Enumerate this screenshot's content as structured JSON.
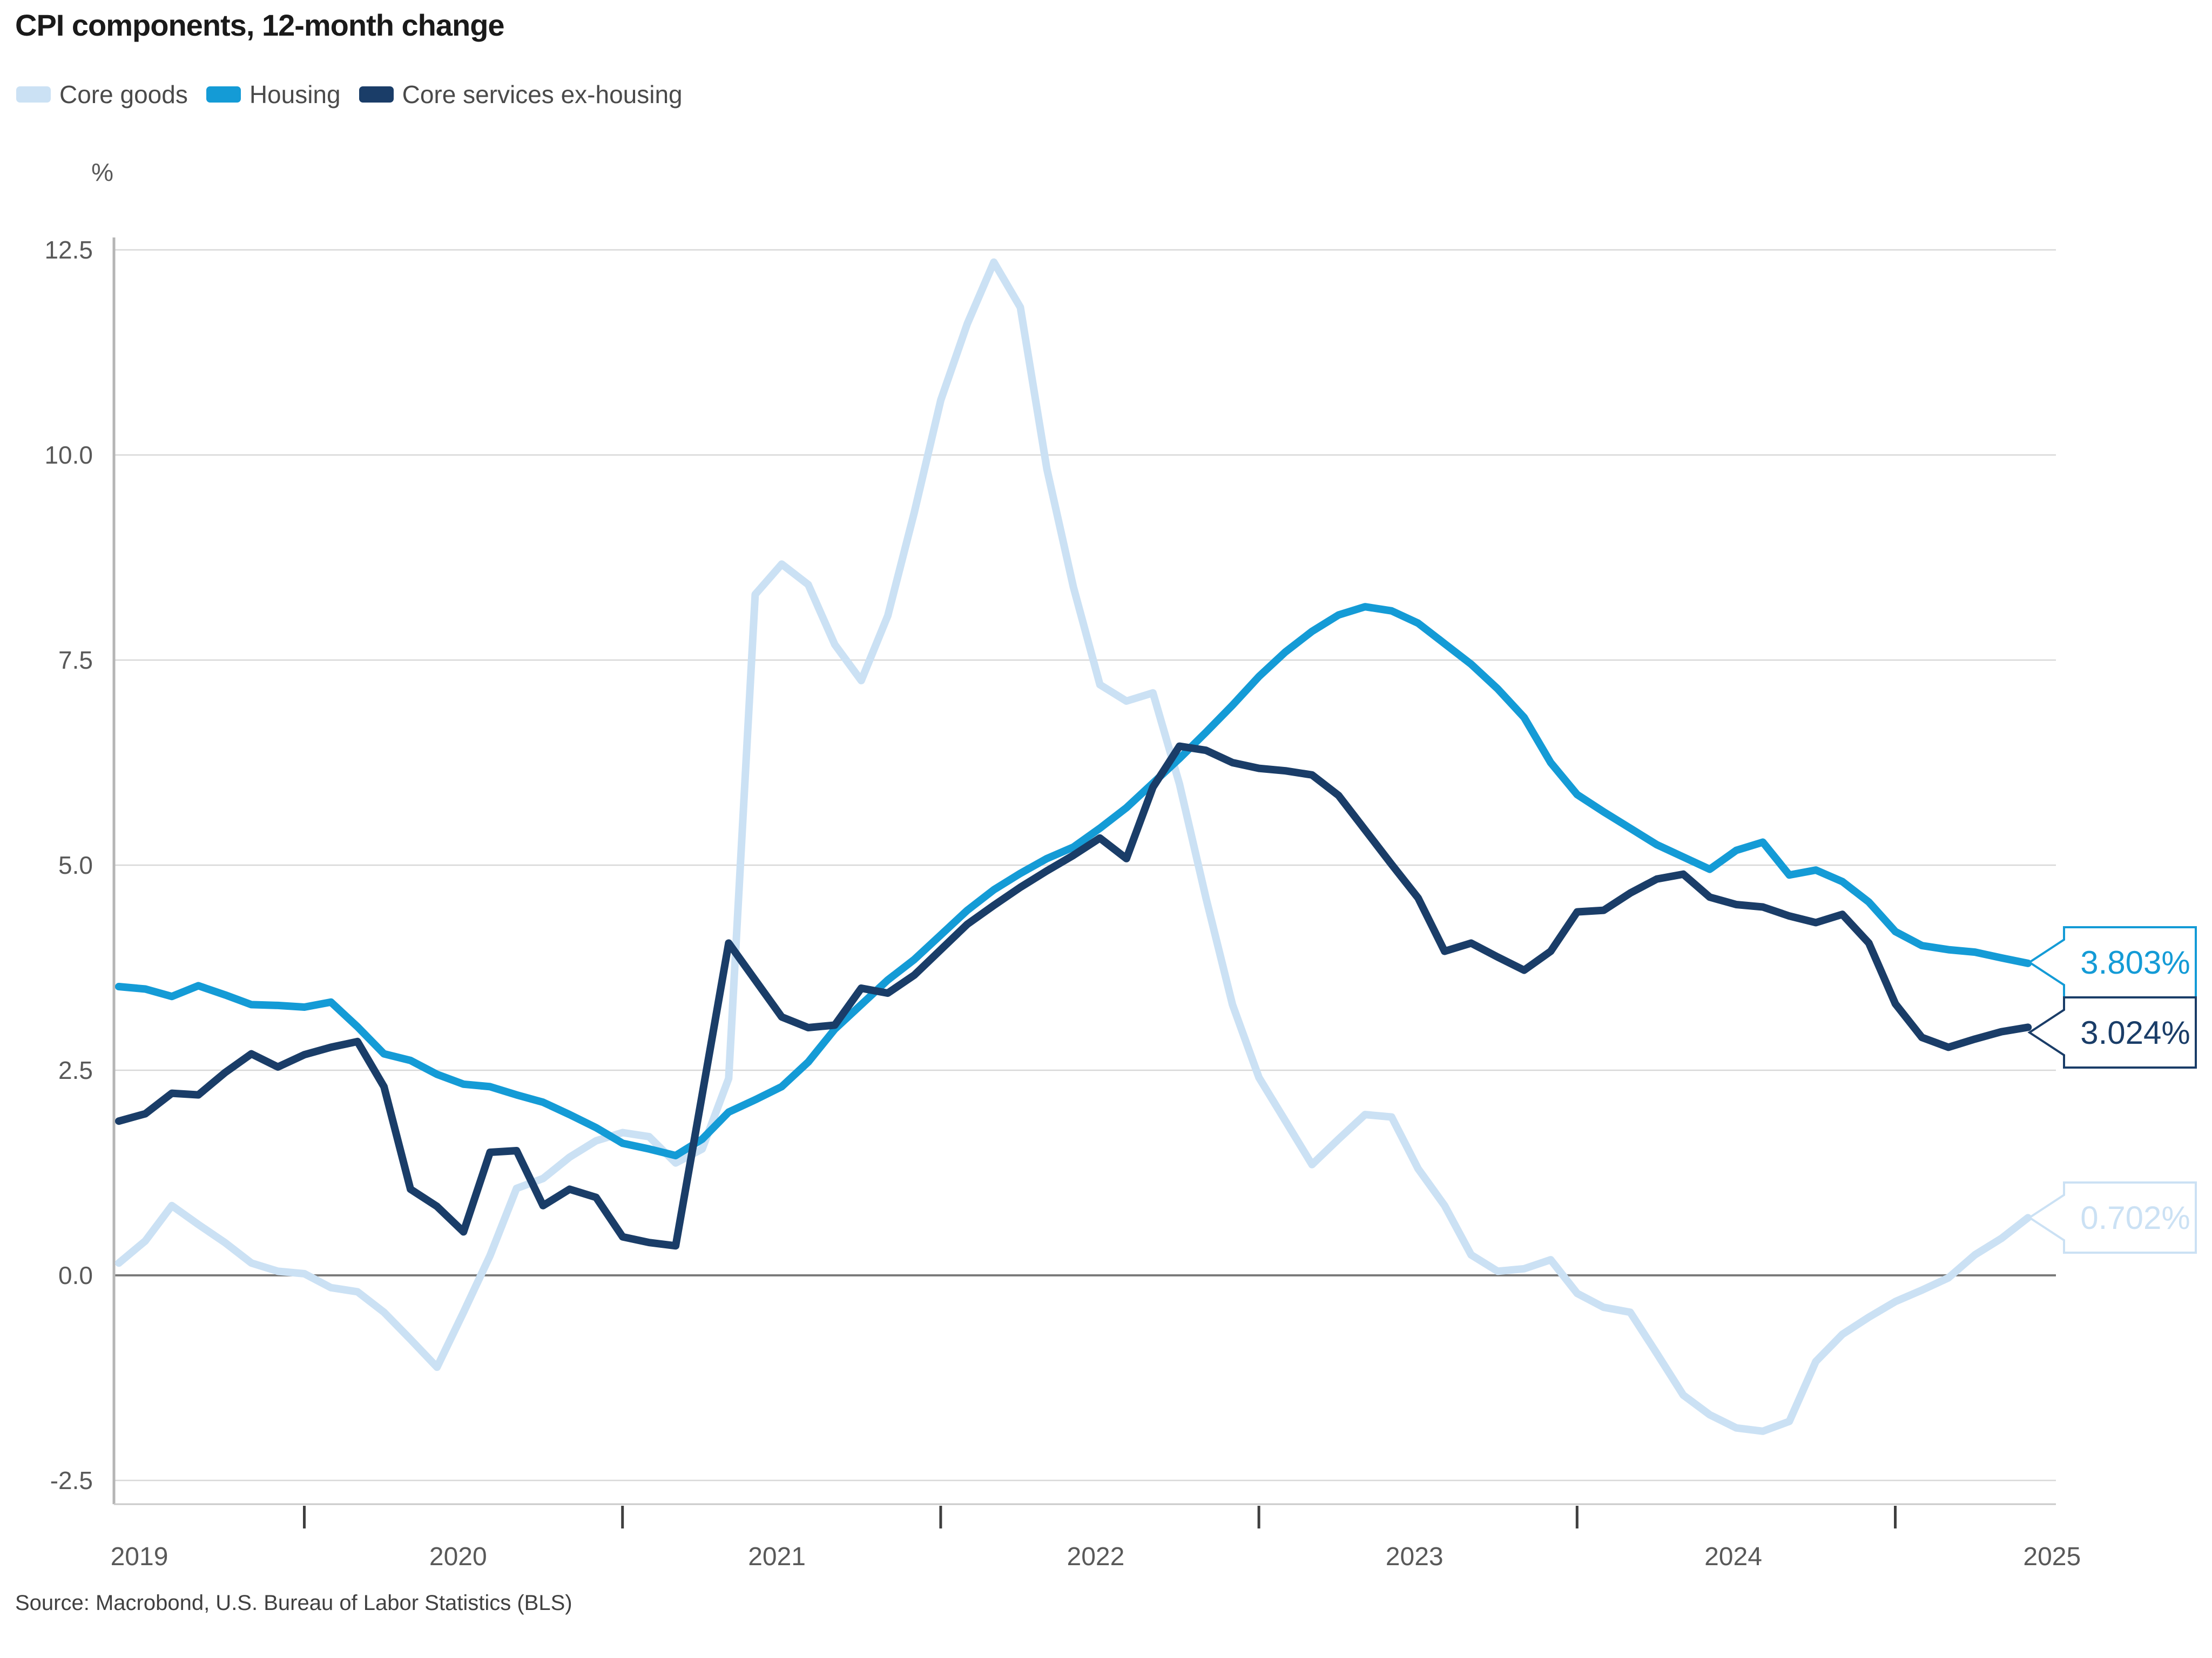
{
  "title": "CPI components, 12-month change",
  "source": "Source: Macrobond, U.S. Bureau of Labor Statistics (BLS)",
  "unit_label": "%",
  "legend": [
    {
      "key": "core_goods",
      "label": "Core goods"
    },
    {
      "key": "housing",
      "label": "Housing"
    },
    {
      "key": "core_services_ex_housing",
      "label": "Core services ex-housing"
    }
  ],
  "colors": {
    "core_goods": "#cbe1f4",
    "housing": "#149bd6",
    "core_services_ex_housing": "#1a3d68",
    "title": "#1a1a1a",
    "axis_text": "#595959",
    "gridline": "#d8d8d8",
    "zero_line": "#7a7a7a",
    "axis_line": "#b5b5b5",
    "tick": "#3f3f3f",
    "bottom_line": "#c9c9c9",
    "background": "#ffffff"
  },
  "end_labels": [
    {
      "series": "housing",
      "text": "3.803%",
      "value": 3.803
    },
    {
      "series": "core_services_ex_housing",
      "text": "3.024%",
      "value": 3.024
    },
    {
      "series": "core_goods",
      "text": "0.702%",
      "value": 0.702
    }
  ],
  "chart_data": {
    "type": "line",
    "unit": "%",
    "frequency": "monthly",
    "start_month": "2019-06",
    "end_month": "2025-06",
    "ylim": [
      -2.5,
      12.5
    ],
    "y_ticks": [
      12.5,
      10.0,
      7.5,
      5.0,
      2.5,
      0.0,
      -2.5
    ],
    "x_year_labels": [
      "2019",
      "2020",
      "2021",
      "2022",
      "2023",
      "2024",
      "2025"
    ],
    "grid": "horizontal",
    "legend_position": "top-left",
    "series": [
      {
        "name": "Core goods",
        "key": "core_goods",
        "values": [
          0.15,
          0.42,
          0.85,
          0.62,
          0.4,
          0.15,
          0.05,
          0.02,
          -0.15,
          -0.2,
          -0.45,
          -0.78,
          -1.12,
          -0.45,
          0.24,
          1.06,
          1.18,
          1.44,
          1.64,
          1.74,
          1.69,
          1.37,
          1.54,
          2.4,
          8.3,
          8.67,
          8.42,
          7.69,
          7.25,
          8.04,
          9.3,
          10.67,
          11.6,
          12.35,
          11.8,
          9.83,
          8.39,
          7.2,
          7.0,
          7.1,
          5.99,
          4.6,
          3.3,
          2.41,
          1.88,
          1.35,
          1.66,
          1.96,
          1.93,
          1.3,
          0.85,
          0.25,
          0.05,
          0.08,
          0.19,
          -0.22,
          -0.39,
          -0.45,
          -0.95,
          -1.46,
          -1.7,
          -1.86,
          -1.9,
          -1.78,
          -1.05,
          -0.72,
          -0.51,
          -0.32,
          -0.18,
          -0.03,
          0.25,
          0.45,
          0.702
        ],
        "last_value": 0.702
      },
      {
        "name": "Housing",
        "key": "housing",
        "values": [
          3.52,
          3.49,
          3.4,
          3.53,
          3.42,
          3.3,
          3.29,
          3.27,
          3.33,
          3.03,
          2.7,
          2.62,
          2.45,
          2.33,
          2.3,
          2.2,
          2.11,
          1.96,
          1.8,
          1.61,
          1.54,
          1.46,
          1.66,
          1.99,
          2.14,
          2.3,
          2.6,
          3.0,
          3.3,
          3.6,
          3.85,
          4.15,
          4.45,
          4.7,
          4.9,
          5.08,
          5.22,
          5.45,
          5.7,
          6.0,
          6.3,
          6.62,
          6.95,
          7.3,
          7.6,
          7.85,
          8.05,
          8.15,
          8.1,
          7.95,
          7.7,
          7.45,
          7.15,
          6.8,
          6.25,
          5.86,
          5.65,
          5.45,
          5.25,
          5.1,
          4.95,
          5.18,
          5.28,
          4.88,
          4.94,
          4.8,
          4.55,
          4.19,
          4.02,
          3.97,
          3.94,
          3.87,
          3.803
        ],
        "last_value": 3.803
      },
      {
        "name": "Core services ex-housing",
        "key": "core_services_ex_housing",
        "values": [
          1.88,
          1.97,
          2.22,
          2.2,
          2.47,
          2.7,
          2.54,
          2.69,
          2.78,
          2.85,
          2.3,
          1.05,
          0.84,
          0.53,
          1.5,
          1.52,
          0.85,
          1.05,
          0.95,
          0.47,
          0.4,
          0.36,
          2.2,
          4.05,
          3.6,
          3.15,
          3.02,
          3.05,
          3.5,
          3.44,
          3.66,
          3.97,
          4.28,
          4.51,
          4.73,
          4.93,
          5.12,
          5.33,
          5.08,
          5.95,
          6.45,
          6.4,
          6.25,
          6.18,
          6.15,
          6.1,
          5.85,
          5.43,
          5.01,
          4.6,
          3.95,
          4.05,
          3.88,
          3.72,
          3.95,
          4.43,
          4.45,
          4.66,
          4.83,
          4.89,
          4.61,
          4.52,
          4.49,
          4.38,
          4.3,
          4.4,
          4.05,
          3.31,
          2.9,
          2.78,
          2.88,
          2.97,
          3.024
        ],
        "last_value": 3.024
      }
    ]
  }
}
